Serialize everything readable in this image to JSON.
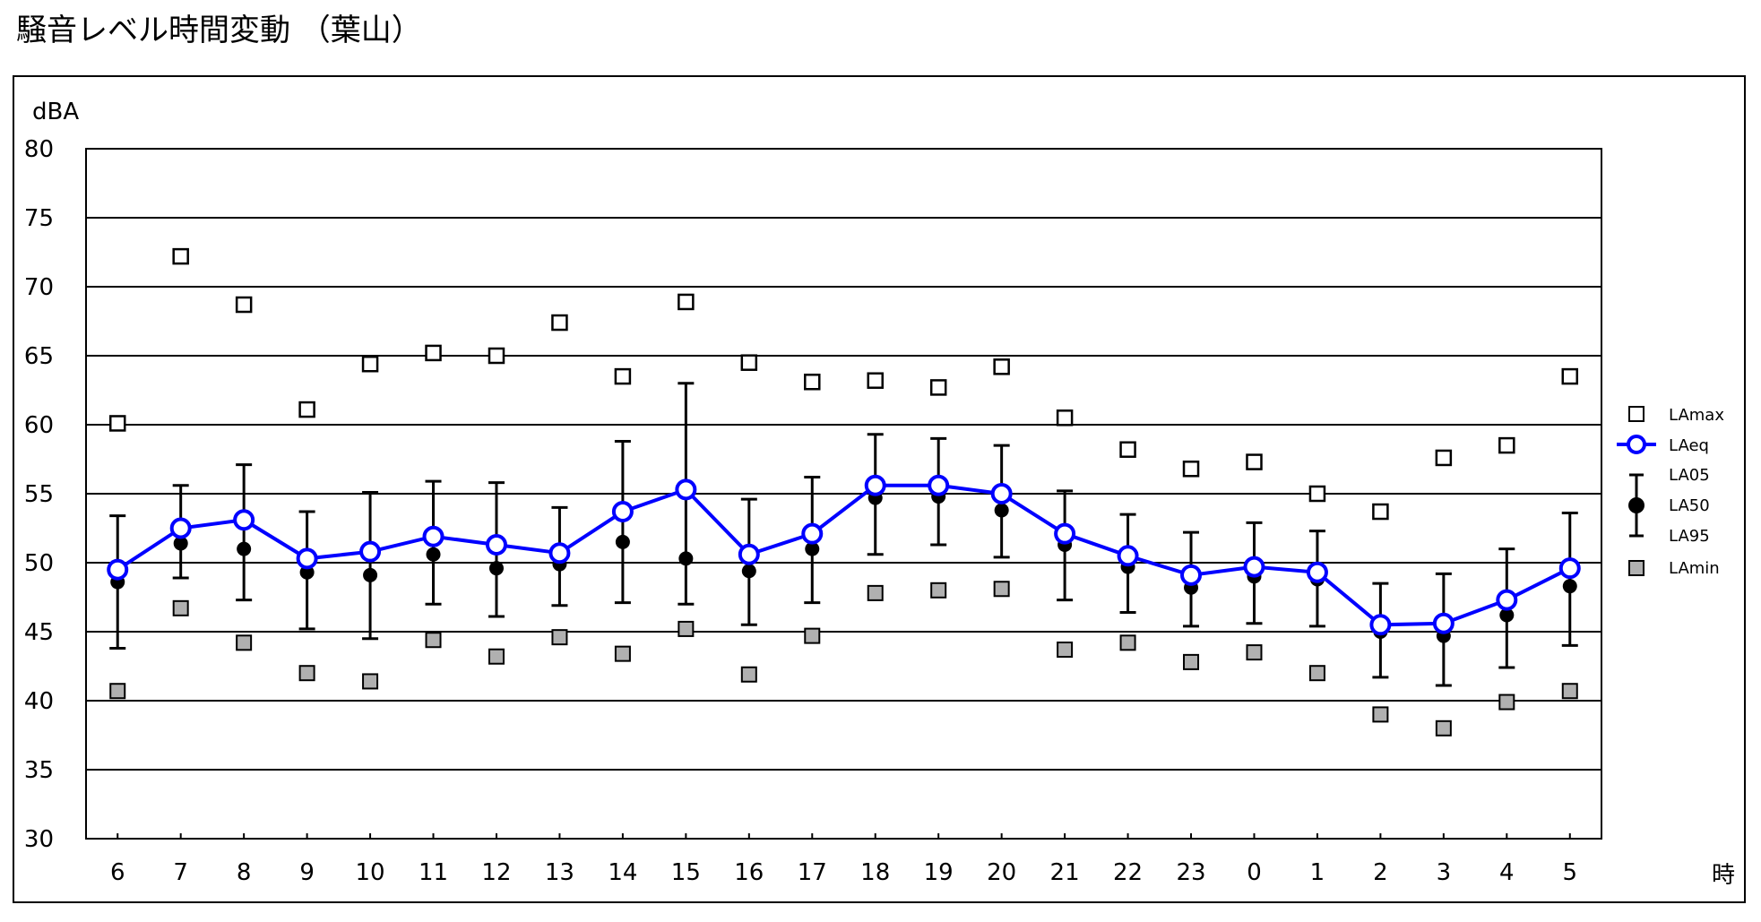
{
  "title": "騒音レベル時間変動 （葉山）",
  "chart_data": {
    "type": "line",
    "ylabel": "dBA",
    "xlabel": "時",
    "ylim": [
      30,
      80
    ],
    "yticks": [
      30,
      35,
      40,
      45,
      50,
      55,
      60,
      65,
      70,
      75,
      80
    ],
    "grid": true,
    "legend_position": "right",
    "categories": [
      "6",
      "7",
      "8",
      "9",
      "10",
      "11",
      "12",
      "13",
      "14",
      "15",
      "16",
      "17",
      "18",
      "19",
      "20",
      "21",
      "22",
      "23",
      "0",
      "1",
      "2",
      "3",
      "4",
      "5"
    ],
    "series": [
      {
        "name": "LAmax",
        "marker": "open-square",
        "values": [
          60.1,
          72.2,
          68.7,
          61.1,
          64.4,
          65.2,
          65.0,
          67.4,
          63.5,
          68.9,
          64.5,
          63.1,
          63.2,
          62.7,
          64.2,
          60.5,
          58.2,
          56.8,
          57.3,
          55.0,
          53.7,
          57.6,
          58.5,
          63.5
        ]
      },
      {
        "name": "LAeq",
        "marker": "open-circle",
        "color": "#0000ff",
        "values": [
          49.5,
          52.5,
          53.1,
          50.3,
          50.8,
          51.9,
          51.3,
          50.7,
          53.7,
          55.3,
          50.6,
          52.1,
          55.6,
          55.6,
          55.0,
          52.1,
          50.5,
          49.1,
          49.7,
          49.3,
          45.5,
          45.6,
          47.3,
          49.6
        ]
      },
      {
        "name": "LA05",
        "marker": "error-bar-top",
        "values": [
          53.4,
          55.6,
          57.1,
          53.7,
          55.1,
          55.9,
          55.8,
          54.0,
          58.8,
          63.0,
          54.6,
          56.2,
          59.3,
          59.0,
          58.5,
          55.2,
          53.5,
          52.2,
          52.9,
          52.3,
          48.5,
          49.2,
          51.0,
          53.6
        ]
      },
      {
        "name": "LA50",
        "marker": "filled-circle",
        "values": [
          48.6,
          51.4,
          51.0,
          49.3,
          49.1,
          50.6,
          49.6,
          49.9,
          51.5,
          50.3,
          49.4,
          51.0,
          54.7,
          54.8,
          53.8,
          51.3,
          49.7,
          48.2,
          49.0,
          48.8,
          45.0,
          44.7,
          46.2,
          48.3
        ]
      },
      {
        "name": "LA95",
        "marker": "error-bar-bottom",
        "values": [
          43.8,
          48.9,
          47.3,
          45.2,
          44.5,
          47.0,
          46.1,
          46.9,
          47.1,
          47.0,
          45.5,
          47.1,
          50.6,
          51.3,
          50.4,
          47.3,
          46.4,
          45.4,
          45.6,
          45.4,
          41.7,
          41.1,
          42.4,
          44.0
        ]
      },
      {
        "name": "LAmin",
        "marker": "gray-square",
        "values": [
          40.7,
          46.7,
          44.2,
          42.0,
          41.4,
          44.4,
          43.2,
          44.6,
          43.4,
          45.2,
          41.9,
          44.7,
          47.8,
          48.0,
          48.1,
          43.7,
          44.2,
          42.8,
          43.5,
          42.0,
          39.0,
          38.0,
          39.9,
          40.7
        ]
      }
    ]
  }
}
